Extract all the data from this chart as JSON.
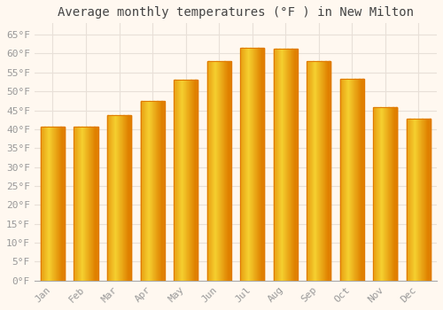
{
  "title": "Average monthly temperatures (°F ) in New Milton",
  "months": [
    "Jan",
    "Feb",
    "Mar",
    "Apr",
    "May",
    "Jun",
    "Jul",
    "Aug",
    "Sep",
    "Oct",
    "Nov",
    "Dec"
  ],
  "values": [
    40.6,
    40.6,
    43.7,
    47.5,
    53.2,
    58.1,
    61.5,
    61.3,
    58.1,
    53.4,
    45.9,
    42.8
  ],
  "bar_color_center": "#FFB300",
  "bar_color_edge": "#E07800",
  "bar_gradient_light": "#FFD060",
  "background_color": "#FFF8F0",
  "plot_bg_color": "#FFF8F0",
  "grid_color": "#E8E0D8",
  "title_fontsize": 10,
  "tick_fontsize": 8,
  "ylabel_ticks": [
    0,
    5,
    10,
    15,
    20,
    25,
    30,
    35,
    40,
    45,
    50,
    55,
    60,
    65
  ],
  "ylim": [
    0,
    68
  ],
  "tick_color": "#999999"
}
